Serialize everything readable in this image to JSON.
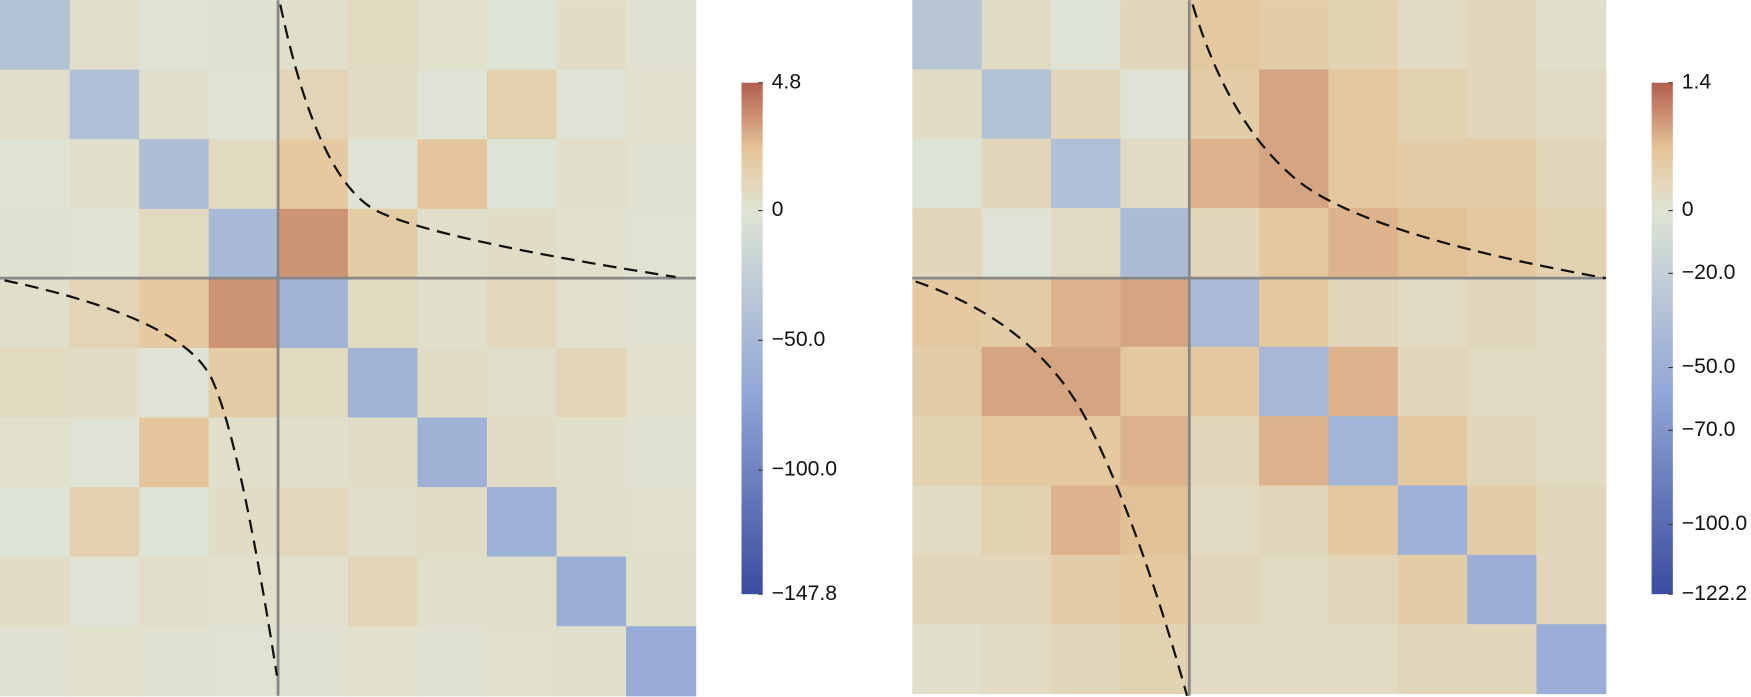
{
  "chart_data": [
    {
      "type": "heatmap",
      "zlim": [
        -147.8,
        4.8
      ],
      "zticks": [
        4.8,
        0,
        {
          "value": -50,
          "label": "−50.0"
        },
        {
          "value": -100,
          "label": "−100.0"
        },
        {
          "value": -147.8,
          "label": "−147.8"
        }
      ],
      "colors": [
        "#3b4b9f",
        "#93a8d6",
        "#dfe4d5",
        "#e5c599",
        "#b35d4e"
      ],
      "z": [
        [
          -40,
          0.5,
          -0.3,
          0.2,
          0.4,
          0.8,
          0.3,
          -0.5,
          0.6,
          0.2
        ],
        [
          0.5,
          -42,
          0.4,
          -0.2,
          1.2,
          0.6,
          -0.8,
          1.5,
          -1,
          0.3
        ],
        [
          -0.3,
          0.4,
          -45,
          0.8,
          2.0,
          -1,
          2.2,
          -1.5,
          0.5,
          0.2
        ],
        [
          0.2,
          -0.2,
          0.8,
          -50,
          3.5,
          1.8,
          0.4,
          0.6,
          0.3,
          0.1
        ],
        [
          0.4,
          1.2,
          2.0,
          3.5,
          -55,
          0.8,
          0.4,
          1.0,
          0.3,
          0.2
        ],
        [
          0.8,
          0.6,
          -1,
          1.8,
          0.8,
          -55,
          0.6,
          0.5,
          1.2,
          0.3
        ],
        [
          0.3,
          -0.8,
          2.2,
          0.4,
          0.4,
          0.6,
          -58,
          0.6,
          0.4,
          0.2
        ],
        [
          -0.5,
          1.5,
          -1.5,
          0.6,
          1.0,
          0.5,
          0.6,
          -60,
          0.5,
          0.3
        ],
        [
          0.6,
          -1,
          0.5,
          0.3,
          0.3,
          1.2,
          0.4,
          0.5,
          -62,
          0.4
        ],
        [
          0.2,
          0.3,
          0.2,
          0.1,
          0.2,
          0.3,
          0.2,
          0.3,
          0.4,
          -65
        ]
      ]
    },
    {
      "type": "heatmap",
      "zlim": [
        -122.2,
        1.4
      ],
      "zticks": [
        1.4,
        0,
        {
          "value": -20,
          "label": "−20.0"
        },
        {
          "value": -50,
          "label": "−50.0"
        },
        {
          "value": -70,
          "label": "−70.0"
        },
        {
          "value": -100,
          "label": "−100.0"
        },
        {
          "value": -122.2,
          "label": "−122.2"
        }
      ],
      "colors": [
        "#3b4b9f",
        "#93a8d6",
        "#dfe4d5",
        "#e5c599",
        "#b35d4e"
      ],
      "z": [
        [
          -30,
          0.2,
          -0.4,
          0.3,
          0.6,
          0.5,
          0.4,
          0.2,
          0.3,
          0.1
        ],
        [
          0.2,
          -32,
          0.3,
          -0.5,
          0.5,
          0.9,
          0.6,
          0.4,
          0.3,
          0.2
        ],
        [
          -0.4,
          0.3,
          -35,
          0.2,
          0.8,
          0.9,
          0.6,
          0.5,
          0.5,
          0.3
        ],
        [
          0.3,
          -0.5,
          0.2,
          -38,
          0.3,
          0.6,
          0.8,
          0.7,
          0.6,
          0.4
        ],
        [
          0.6,
          0.5,
          0.8,
          0.9,
          -40,
          0.6,
          0.3,
          0.2,
          0.3,
          0.2
        ],
        [
          0.5,
          0.9,
          0.9,
          0.6,
          0.6,
          -42,
          0.8,
          0.3,
          0.2,
          0.2
        ],
        [
          0.4,
          0.6,
          0.6,
          0.8,
          0.3,
          0.8,
          -45,
          0.6,
          0.3,
          0.2
        ],
        [
          0.2,
          0.4,
          0.8,
          0.7,
          0.2,
          0.3,
          0.6,
          -48,
          0.5,
          0.3
        ],
        [
          0.3,
          0.3,
          0.5,
          0.6,
          0.3,
          0.2,
          0.3,
          0.5,
          -50,
          0.3
        ],
        [
          0.1,
          0.2,
          0.3,
          0.4,
          0.2,
          0.2,
          0.2,
          0.3,
          0.3,
          -52
        ]
      ]
    }
  ]
}
